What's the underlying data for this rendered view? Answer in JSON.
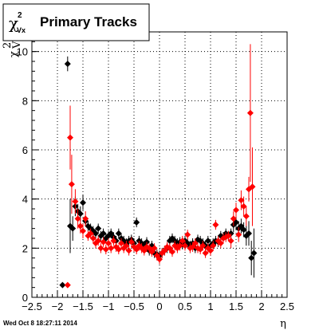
{
  "chart_data": {
    "type": "scatter",
    "title": "Primary Tracks",
    "title_symbol": "χ",
    "title_superscript": "2",
    "title_subscript": "Vx",
    "xlabel": "η",
    "ylabel": "χ²_Vx",
    "xlim": [
      -2.5,
      2.5
    ],
    "ylim": [
      0,
      10.8
    ],
    "x_ticks": [
      "−2.5",
      "−2",
      "−1.5",
      "−1",
      "−0.5",
      "0",
      "0.5",
      "1",
      "1.5",
      "2",
      "2.5"
    ],
    "y_ticks": [
      "0",
      "2",
      "4",
      "6",
      "8",
      "10"
    ],
    "grid": true,
    "timestamp": "Wed Oct  8 18:27:11 2014",
    "series": [
      {
        "color": "#000000",
        "points": [
          [
            -1.9,
            0.5,
            0
          ],
          [
            -1.8,
            9.5,
            0.3
          ],
          [
            -1.75,
            2.9,
            1.1
          ],
          [
            -1.7,
            2.8,
            0.5
          ],
          [
            -1.65,
            3.7,
            0.4
          ],
          [
            -1.6,
            3.5,
            0.3
          ],
          [
            -1.55,
            3.4,
            0.3
          ],
          [
            -1.5,
            3.85,
            0.3
          ],
          [
            -1.45,
            3.1,
            0.2
          ],
          [
            -1.4,
            2.9,
            0.2
          ],
          [
            -1.35,
            2.8,
            0.2
          ],
          [
            -1.3,
            2.7,
            0.2
          ],
          [
            -1.25,
            2.6,
            0.2
          ],
          [
            -1.2,
            2.8,
            0.2
          ],
          [
            -1.15,
            2.5,
            0.2
          ],
          [
            -1.1,
            2.6,
            0.2
          ],
          [
            -1.05,
            2.4,
            0.2
          ],
          [
            -1.0,
            2.5,
            0.2
          ],
          [
            -0.95,
            2.6,
            0.2
          ],
          [
            -0.9,
            2.45,
            0.2
          ],
          [
            -0.85,
            2.3,
            0.2
          ],
          [
            -0.8,
            2.6,
            0.2
          ],
          [
            -0.75,
            2.4,
            0.2
          ],
          [
            -0.7,
            2.3,
            0.2
          ],
          [
            -0.65,
            2.2,
            0.2
          ],
          [
            -0.6,
            2.3,
            0.2
          ],
          [
            -0.55,
            2.35,
            0.2
          ],
          [
            -0.5,
            2.2,
            0.2
          ],
          [
            -0.45,
            3.05,
            0.2
          ],
          [
            -0.4,
            2.3,
            0.2
          ],
          [
            -0.35,
            2.2,
            0.2
          ],
          [
            -0.3,
            2.1,
            0.2
          ],
          [
            -0.25,
            2.25,
            0.2
          ],
          [
            -0.2,
            1.9,
            0.2
          ],
          [
            -0.15,
            2.1,
            0.2
          ],
          [
            -0.1,
            1.8,
            0.2
          ],
          [
            -0.05,
            1.75,
            0.2
          ],
          [
            0.0,
            1.7,
            0.2
          ],
          [
            0.05,
            1.8,
            0.2
          ],
          [
            0.1,
            1.9,
            0.2
          ],
          [
            0.15,
            2.0,
            0.2
          ],
          [
            0.2,
            2.3,
            0.2
          ],
          [
            0.25,
            2.4,
            0.2
          ],
          [
            0.3,
            2.3,
            0.2
          ],
          [
            0.35,
            2.2,
            0.2
          ],
          [
            0.4,
            2.25,
            0.2
          ],
          [
            0.45,
            2.15,
            0.2
          ],
          [
            0.5,
            2.3,
            0.2
          ],
          [
            0.55,
            2.2,
            0.2
          ],
          [
            0.6,
            2.1,
            0.2
          ],
          [
            0.65,
            2.2,
            0.2
          ],
          [
            0.7,
            2.0,
            0.2
          ],
          [
            0.75,
            2.35,
            0.2
          ],
          [
            0.8,
            2.3,
            0.2
          ],
          [
            0.85,
            2.2,
            0.2
          ],
          [
            0.9,
            2.1,
            0.2
          ],
          [
            0.95,
            2.3,
            0.2
          ],
          [
            1.0,
            2.1,
            0.2
          ],
          [
            1.05,
            2.2,
            0.2
          ],
          [
            1.1,
            2.3,
            0.2
          ],
          [
            1.15,
            2.25,
            0.2
          ],
          [
            1.2,
            2.5,
            0.2
          ],
          [
            1.25,
            2.45,
            0.2
          ],
          [
            1.3,
            2.6,
            0.2
          ],
          [
            1.35,
            2.5,
            0.2
          ],
          [
            1.4,
            2.6,
            0.2
          ],
          [
            1.45,
            2.95,
            0.3
          ],
          [
            1.5,
            3.05,
            0.3
          ],
          [
            1.55,
            2.8,
            0.3
          ],
          [
            1.6,
            2.9,
            0.3
          ],
          [
            1.65,
            2.75,
            0.3
          ],
          [
            1.7,
            2.5,
            0.4
          ],
          [
            1.75,
            2.6,
            0.5
          ],
          [
            1.8,
            1.6,
            0.7
          ],
          [
            1.85,
            1.8,
            1.0
          ]
        ]
      },
      {
        "color": "#ff0000",
        "points": [
          [
            -1.8,
            0.5,
            0
          ],
          [
            -1.75,
            6.5,
            1.3
          ],
          [
            -1.72,
            4.6,
            1.2
          ],
          [
            -1.65,
            3.9,
            0.5
          ],
          [
            -1.6,
            3.2,
            0.4
          ],
          [
            -1.55,
            2.9,
            0.3
          ],
          [
            -1.5,
            2.7,
            0.3
          ],
          [
            -1.45,
            3.2,
            0.3
          ],
          [
            -1.4,
            2.5,
            0.2
          ],
          [
            -1.35,
            2.6,
            0.2
          ],
          [
            -1.3,
            2.4,
            0.2
          ],
          [
            -1.25,
            2.2,
            0.2
          ],
          [
            -1.2,
            2.3,
            0.2
          ],
          [
            -1.15,
            2.0,
            0.2
          ],
          [
            -1.1,
            2.25,
            0.2
          ],
          [
            -1.05,
            1.95,
            0.2
          ],
          [
            -1.0,
            2.2,
            0.2
          ],
          [
            -0.95,
            2.0,
            0.2
          ],
          [
            -0.9,
            2.3,
            0.2
          ],
          [
            -0.85,
            2.05,
            0.2
          ],
          [
            -0.8,
            1.95,
            0.2
          ],
          [
            -0.75,
            2.2,
            0.2
          ],
          [
            -0.7,
            2.0,
            0.2
          ],
          [
            -0.65,
            2.1,
            0.2
          ],
          [
            -0.6,
            1.9,
            0.2
          ],
          [
            -0.55,
            2.25,
            0.2
          ],
          [
            -0.5,
            2.05,
            0.2
          ],
          [
            -0.45,
            1.95,
            0.2
          ],
          [
            -0.4,
            2.1,
            0.2
          ],
          [
            -0.35,
            2.0,
            0.2
          ],
          [
            -0.3,
            1.9,
            0.2
          ],
          [
            -0.25,
            2.05,
            0.2
          ],
          [
            -0.2,
            2.0,
            0.2
          ],
          [
            -0.15,
            1.85,
            0.2
          ],
          [
            -0.1,
            2.0,
            0.2
          ],
          [
            -0.05,
            1.7,
            0.2
          ],
          [
            0.0,
            1.55,
            0.2
          ],
          [
            0.05,
            1.8,
            0.2
          ],
          [
            0.1,
            1.9,
            0.2
          ],
          [
            0.15,
            2.05,
            0.2
          ],
          [
            0.2,
            2.0,
            0.2
          ],
          [
            0.25,
            1.85,
            0.2
          ],
          [
            0.3,
            2.1,
            0.2
          ],
          [
            0.35,
            2.0,
            0.2
          ],
          [
            0.4,
            2.1,
            0.2
          ],
          [
            0.45,
            2.3,
            0.2
          ],
          [
            0.5,
            2.1,
            0.2
          ],
          [
            0.55,
            2.55,
            0.2
          ],
          [
            0.6,
            2.0,
            0.2
          ],
          [
            0.65,
            2.05,
            0.2
          ],
          [
            0.7,
            2.2,
            0.2
          ],
          [
            0.75,
            2.0,
            0.2
          ],
          [
            0.8,
            1.95,
            0.2
          ],
          [
            0.85,
            2.1,
            0.2
          ],
          [
            0.9,
            1.8,
            0.2
          ],
          [
            0.95,
            2.0,
            0.2
          ],
          [
            1.0,
            1.9,
            0.2
          ],
          [
            1.05,
            2.1,
            0.2
          ],
          [
            1.1,
            2.95,
            0.2
          ],
          [
            1.15,
            2.3,
            0.2
          ],
          [
            1.2,
            2.2,
            0.2
          ],
          [
            1.25,
            2.4,
            0.2
          ],
          [
            1.3,
            2.45,
            0.2
          ],
          [
            1.35,
            2.5,
            0.2
          ],
          [
            1.4,
            2.3,
            0.3
          ],
          [
            1.45,
            3.2,
            0.3
          ],
          [
            1.5,
            3.55,
            0.3
          ],
          [
            1.55,
            2.55,
            0.3
          ],
          [
            1.6,
            3.95,
            0.4
          ],
          [
            1.65,
            3.7,
            0.4
          ],
          [
            1.7,
            3.3,
            0.4
          ],
          [
            1.75,
            4.4,
            0.5
          ],
          [
            1.78,
            7.5,
            2.8
          ],
          [
            1.82,
            4.5,
            1.6
          ]
        ]
      }
    ]
  }
}
